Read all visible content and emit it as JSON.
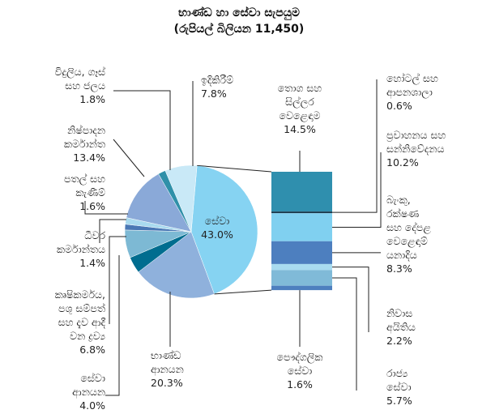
{
  "chart_data": {
    "type": "pie",
    "title": "භාණ්ඩ හා සේවා සැපයුම",
    "subtitle": "(රුපියල් බිලියන 11,450)",
    "categories": [
      "සේවා",
      "භාණ්ඩ\nආනයන",
      "සේවා\nආනයන",
      "කෘෂිකර්මය,\nපශු සම්පත්\nසහ දැව ආදී\nවන ද්‍රව්‍ය",
      "ධීවර\nකර්මාන්තය",
      "පතල් සහ\nකැණීම්",
      "නිෂ්පාදන\nකර්මාන්ත",
      "විදුලිය, ගෑස්\nසහ ජලය",
      "ඉදිකිරීම්"
    ],
    "values": [
      43.0,
      20.3,
      4.0,
      6.8,
      1.4,
      1.6,
      13.4,
      1.8,
      7.8
    ],
    "value_labels": [
      "43.0%",
      "20.3%",
      "4.0%",
      "6.8%",
      "1.4%",
      "1.6%",
      "13.4%",
      "1.8%",
      "7.8%"
    ],
    "colors": [
      "#86d3f2",
      "#8fb1dc",
      "#006d8f",
      "#7db9d4",
      "#4a78b5",
      "#a9daef",
      "#8aa9d8",
      "#2f90a9",
      "#c9e9f7"
    ],
    "breakdown": {
      "categories": [
        "තොග සහ\nසිල්ලර\nවෙළෙඳාම",
        "හෝටල් සහ\nආපනශාලා",
        "ප්‍රවාහනය සහ\nසන්නිවේදනය",
        "බැංකු,\nරක්ෂණ\nසහ දේපළ\nවෙළෙඳාම්\nයනාදිය",
        "නිවාස\nඅයිතිය",
        "රාජ්‍ය\nසේවා",
        "පෞද්ගලික\nසේවා"
      ],
      "values": [
        14.5,
        0.6,
        10.2,
        8.3,
        2.2,
        5.7,
        1.6
      ],
      "value_labels": [
        "14.5%",
        "0.6%",
        "10.2%",
        "8.3%",
        "2.2%",
        "5.7%",
        "1.6%"
      ],
      "colors": [
        "#2f8fae",
        "#16384a",
        "#80d0f0",
        "#4d7fbf",
        "#a9dcf0",
        "#80bad8",
        "#4d7fbf"
      ]
    }
  }
}
